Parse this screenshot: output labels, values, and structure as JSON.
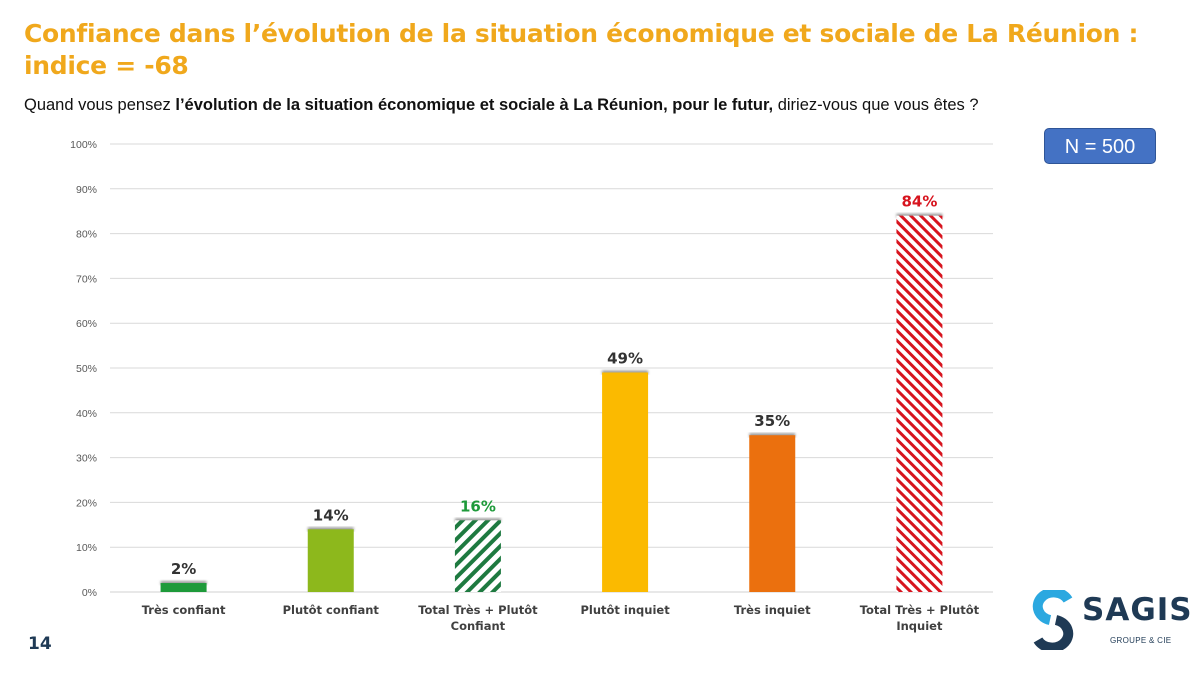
{
  "header": {
    "title": "Confiance dans l’évolution de la situation économique et sociale de La Réunion : indice = -68",
    "question_start": "Quand vous pensez ",
    "question_bold": "l’évolution de la situation économique et sociale à La Réunion, pour le futur,",
    "question_end": " diriez-vous que vous êtes ?",
    "sample_size": "N = 500"
  },
  "footer": {
    "page_number": "14",
    "logo_name": "SAGIS",
    "logo_subtitle": "GROUPE & CIE"
  },
  "colors": {
    "title": "#F0A81C",
    "tres_confiant": "#1E9A3A",
    "plutot_confiant": "#8DB81C",
    "total_confiant_hatch": "#1E7A40",
    "plutot_inquiet": "#FBBA00",
    "tres_inquiet": "#EB700E",
    "total_inquiet_hatch": "#D7141E",
    "label_default": "#333333",
    "label_green": "#1E9A3A",
    "label_red": "#D7141E"
  },
  "chart_data": {
    "type": "bar",
    "title": "Confiance dans l’évolution de la situation économique et sociale de La Réunion : indice = -68",
    "xlabel": "",
    "ylabel": "",
    "ylim": [
      0,
      100
    ],
    "yticks": [
      "0%",
      "10%",
      "20%",
      "30%",
      "40%",
      "50%",
      "60%",
      "70%",
      "80%",
      "90%",
      "100%"
    ],
    "grid": true,
    "categories": [
      "Très confiant",
      "Plutôt confiant",
      "Total Très + Plutôt Confiant",
      "Plutôt inquiet",
      "Très inquiet",
      "Total Très + Plutôt Inquiet"
    ],
    "category_lines": [
      [
        "Très confiant"
      ],
      [
        "Plutôt confiant"
      ],
      [
        "Total Très + Plutôt",
        "Confiant"
      ],
      [
        "Plutôt inquiet"
      ],
      [
        "Très inquiet"
      ],
      [
        "Total Très + Plutôt",
        "Inquiet"
      ]
    ],
    "values": [
      2,
      14,
      16,
      49,
      35,
      84
    ],
    "data_labels": [
      "2%",
      "14%",
      "16%",
      "49%",
      "35%",
      "84%"
    ],
    "fills": [
      "solid",
      "solid",
      "hatch-green",
      "solid",
      "solid",
      "hatch-red"
    ],
    "bar_colors": [
      "#1E9A3A",
      "#8DB81C",
      "#1E7A40",
      "#FBBA00",
      "#EB700E",
      "#D7141E"
    ],
    "label_colors": [
      "#333333",
      "#333333",
      "#1E9A3A",
      "#333333",
      "#333333",
      "#D7141E"
    ]
  }
}
